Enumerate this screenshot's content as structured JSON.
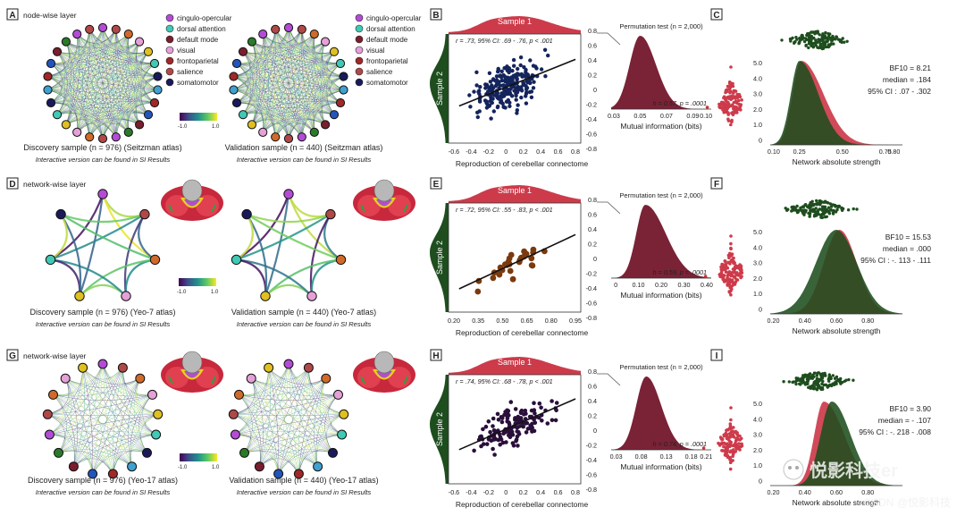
{
  "colors": {
    "red": "#cd3b4b",
    "darkred": "#7a2236",
    "green": "#1e4d1e",
    "navy": "#14245c",
    "brown": "#7a3a0e",
    "purple": "#2a0f3a"
  },
  "legend": {
    "labels": [
      "cingulo-opercular",
      "dorsal attention",
      "default mode",
      "visual",
      "frontoparietal",
      "salience",
      "somatomotor"
    ],
    "colors": [
      "#b44bd6",
      "#40c9b5",
      "#7a1e2e",
      "#e6a0d8",
      "#a02828",
      "#b04848",
      "#1a1a5a"
    ]
  },
  "colorbar": {
    "min": "-1.0",
    "max": "1.0"
  },
  "rows": [
    {
      "left": {
        "letter": "A",
        "layer": "node-wise layer",
        "atlas_image": false,
        "nodes": 26,
        "disc_caption": "Discovery sample (n = 976) (Seitzman atlas)",
        "val_caption": "Validation sample (n = 440) (Seitzman  atlas)",
        "note": "Interactive version can be found in SI Results",
        "show_legend": true,
        "show_colorbar": true
      },
      "scatter": {
        "letter": "B",
        "sample_label": "Sample 1",
        "side_label": "Sample 2",
        "stat": "r = .73, 95% CI: .69 - .76, p < .001",
        "xlabel": "Reproduction of cerebellar connectome",
        "xticks": [
          "-0.6",
          "-0.4",
          "-0.2",
          "0",
          "0.2",
          "0.4",
          "0.6",
          "0.8"
        ],
        "yticks": [
          "0.8",
          "0.6",
          "0.4",
          "0.2",
          "0",
          "-0.2",
          "-0.4",
          "-0.6",
          "-0.8"
        ],
        "xrange": [
          -0.65,
          0.85
        ],
        "yrange": [
          -0.85,
          0.85
        ],
        "slope": 0.55,
        "intercept": 0.02,
        "n": 240,
        "spread": 0.23,
        "xmean": 0.0,
        "xsd": 0.27,
        "color": "navy",
        "dot": 2.2
      },
      "perm": {
        "title": "Permutation test (n = 2,000)",
        "stat": "h = 0.57, p = .0001",
        "xlabel": "Mutual information (bits)",
        "xticks": [
          "0.03",
          "0.05",
          "0.07",
          "0.09",
          "0.10"
        ],
        "xvals": [
          0.03,
          0.05,
          0.07,
          0.09,
          0.1
        ],
        "xrange": [
          0.028,
          0.104
        ],
        "mode": 0.05,
        "sdl": 0.008,
        "sdr": 0.012,
        "obs": 0.101
      },
      "bayes": {
        "letter": "C",
        "stats": [
          "BF10 = 8.21",
          "median = .184",
          "95% CI : .07 - .302"
        ],
        "yticks": [
          "5.0",
          "4.0",
          "3.0",
          "2.0",
          "1.0",
          "0"
        ],
        "xticks": [
          "0.10",
          "0.25",
          "0.50",
          "0.75",
          "0.80"
        ],
        "xvals": [
          0.1,
          0.25,
          0.5,
          0.75,
          0.8
        ],
        "xlabel": "Network absolute strength",
        "xrange": [
          0.08,
          0.85
        ],
        "green_mode": 0.25,
        "green_sdl": 0.05,
        "green_sdr": 0.11,
        "red_mode": 0.26,
        "red_sdl": 0.05,
        "red_sdr": 0.13
      }
    },
    {
      "left": {
        "letter": "D",
        "layer": "network-wise layer",
        "atlas_image": true,
        "nodes": 7,
        "disc_caption": "Discovery sample (n = 976) (Yeo-7 atlas)",
        "val_caption": "Validation sample (n = 440) (Yeo-7 atlas)",
        "note": "Interactive version can be found in SI Results",
        "show_legend": false,
        "show_colorbar": true
      },
      "scatter": {
        "letter": "E",
        "sample_label": "Sample 1",
        "side_label": "Sample 2",
        "stat": "r = .72, 95% CI: .55 - .83, p < .001",
        "xlabel": "Reproduction of cerebellar connectome",
        "xticks": [
          "0.20",
          "0.35",
          "0.50",
          "0.65",
          "0.80",
          "0.95"
        ],
        "yticks": [
          "0.8",
          "0.6",
          "0.4",
          "0.2",
          "0",
          "-0.2",
          "-0.4",
          "-0.6",
          "-0.8"
        ],
        "xrange": [
          0.18,
          0.98
        ],
        "yrange": [
          -0.85,
          0.85
        ],
        "slope": 1.2,
        "intercept": -0.78,
        "n": 28,
        "spread": 0.15,
        "xmean": 0.6,
        "xsd": 0.16,
        "color": "brown",
        "dot": 3.4
      },
      "perm": {
        "title": "Permutation test (n = 2,000)",
        "stat": "h = 0.59, p = .0001",
        "xlabel": "Mutual information (bits)",
        "xticks": [
          "0",
          "0.10",
          "0.20",
          "0.30",
          "0.40"
        ],
        "xvals": [
          0,
          0.1,
          0.2,
          0.3,
          0.4
        ],
        "xrange": [
          -0.02,
          0.42
        ],
        "mode": 0.13,
        "sdl": 0.04,
        "sdr": 0.09,
        "obs": 0.395
      },
      "bayes": {
        "letter": "F",
        "stats": [
          "BF10 = 15.53",
          "median = .000",
          "95% CI : -. 113 - .111"
        ],
        "yticks": [
          "5.0",
          "4.0",
          "3.0",
          "2.0",
          "1.0",
          "0"
        ],
        "xticks": [
          "0.20",
          "0.40",
          "0.60",
          "0.80"
        ],
        "xvals": [
          0.2,
          0.4,
          0.6,
          0.8
        ],
        "xlabel": "Network absolute strength",
        "xrange": [
          0.18,
          1.02
        ],
        "green_mode": 0.6,
        "green_sdl": 0.13,
        "green_sdr": 0.13,
        "red_mode": 0.62,
        "red_sdl": 0.1,
        "red_sdr": 0.11
      }
    },
    {
      "left": {
        "letter": "G",
        "layer": "network-wise layer",
        "atlas_image": true,
        "nodes": 17,
        "disc_caption": "Discovery sample (n = 976) (Yeo-17 atlas)",
        "val_caption": "Validation sample (n = 440) (Yeo-17 atlas)",
        "note": "Interactive version can be found in SI Results",
        "show_legend": false,
        "show_colorbar": true
      },
      "scatter": {
        "letter": "H",
        "sample_label": "Sample 1",
        "side_label": "Sample 2",
        "stat": "r = .74, 95% CI: .68 - .78, p < .001",
        "xlabel": "Reproduction of cerebellar connectome",
        "xticks": [
          "-0.6",
          "-0.4",
          "-0.2",
          "0",
          "0.2",
          "0.4",
          "0.6",
          "0.8"
        ],
        "yticks": [
          "0.8",
          "0.6",
          "0.4",
          "0.2",
          "0",
          "-0.2",
          "-0.4",
          "-0.6",
          "-0.8"
        ],
        "xrange": [
          -0.65,
          0.85
        ],
        "yrange": [
          -0.85,
          0.85
        ],
        "slope": 0.6,
        "intercept": 0.0,
        "n": 140,
        "spread": 0.2,
        "xmean": 0.1,
        "xsd": 0.3,
        "color": "purple",
        "dot": 2.3
      },
      "perm": {
        "title": "Permutation test (n = 2,000)",
        "stat": "h = 0.74, p = .0001",
        "xlabel": "Mutual information (bits)",
        "xticks": [
          "0.03",
          "0.08",
          "0.13",
          "0.18",
          "0.21"
        ],
        "xvals": [
          0.03,
          0.08,
          0.13,
          0.18,
          0.21
        ],
        "xrange": [
          0.02,
          0.22
        ],
        "mode": 0.09,
        "sdl": 0.02,
        "sdr": 0.03,
        "obs": 0.205
      },
      "bayes": {
        "letter": "I",
        "stats": [
          "BF10 = 3.90",
          "median = - .107",
          "95% CI : -. 218 - .008"
        ],
        "yticks": [
          "5.0",
          "4.0",
          "3.0",
          "2.0",
          "1.0",
          "0"
        ],
        "xticks": [
          "0.20",
          "0.40",
          "0.60",
          "0.80"
        ],
        "xvals": [
          0.2,
          0.4,
          0.6,
          0.8
        ],
        "xlabel": "Network absolute strength",
        "xrange": [
          0.18,
          1.02
        ],
        "green_mode": 0.57,
        "green_sdl": 0.07,
        "green_sdr": 0.12,
        "red_mode": 0.52,
        "red_sdl": 0.06,
        "red_sdr": 0.13
      }
    }
  ],
  "watermark": {
    "name": "悦影科技er",
    "credit": "CSDN @悦影科技"
  },
  "chart_data": [
    {
      "type": "scatter",
      "panel": "B",
      "title": "Sample 1 vs Sample 2",
      "stat": "r = .73, 95% CI: .69 - .76, p < .001",
      "xlabel": "Reproduction of cerebellar connectome",
      "xlim": [
        -0.6,
        0.8
      ],
      "ylim": [
        -0.8,
        0.8
      ],
      "fit": {
        "slope": 0.55,
        "intercept": 0.02
      }
    },
    {
      "type": "area",
      "panel": "B-perm",
      "title": "Permutation test (n = 2,000)",
      "xlabel": "Mutual information (bits)",
      "xlim": [
        0.03,
        0.1
      ],
      "mode": 0.05,
      "observed": 0.101,
      "stat": "h = 0.57, p = .0001"
    },
    {
      "type": "area",
      "panel": "C",
      "xlabel": "Network absolute strength",
      "xlim": [
        0.1,
        0.8
      ],
      "ylim": [
        0,
        5
      ],
      "BF10": 8.21,
      "median": 0.184,
      "ci95": [
        0.07,
        0.302
      ]
    },
    {
      "type": "scatter",
      "panel": "E",
      "stat": "r = .72, 95% CI: .55 - .83, p < .001",
      "xlabel": "Reproduction of cerebellar connectome",
      "xlim": [
        0.2,
        0.95
      ],
      "ylim": [
        -0.8,
        0.8
      ],
      "fit": {
        "slope": 1.2,
        "intercept": -0.78
      }
    },
    {
      "type": "area",
      "panel": "E-perm",
      "xlabel": "Mutual information (bits)",
      "xlim": [
        0,
        0.4
      ],
      "mode": 0.13,
      "observed": 0.395,
      "stat": "h = 0.59, p = .0001"
    },
    {
      "type": "area",
      "panel": "F",
      "xlabel": "Network absolute strength",
      "xlim": [
        0.2,
        0.8
      ],
      "ylim": [
        0,
        5
      ],
      "BF10": 15.53,
      "median": 0.0,
      "ci95": [
        -0.113,
        0.111
      ]
    },
    {
      "type": "scatter",
      "panel": "H",
      "stat": "r = .74, 95% CI: .68 - .78, p < .001",
      "xlabel": "Reproduction of cerebellar connectome",
      "xlim": [
        -0.6,
        0.8
      ],
      "ylim": [
        -0.8,
        0.8
      ],
      "fit": {
        "slope": 0.6,
        "intercept": 0.0
      }
    },
    {
      "type": "area",
      "panel": "H-perm",
      "xlabel": "Mutual information (bits)",
      "xlim": [
        0.03,
        0.21
      ],
      "mode": 0.09,
      "observed": 0.205,
      "stat": "h = 0.74, p = .0001"
    },
    {
      "type": "area",
      "panel": "I",
      "xlabel": "Network absolute strength",
      "xlim": [
        0.2,
        0.8
      ],
      "ylim": [
        0,
        5
      ],
      "BF10": 3.9,
      "median": -0.107,
      "ci95": [
        -0.218,
        0.008
      ]
    }
  ]
}
